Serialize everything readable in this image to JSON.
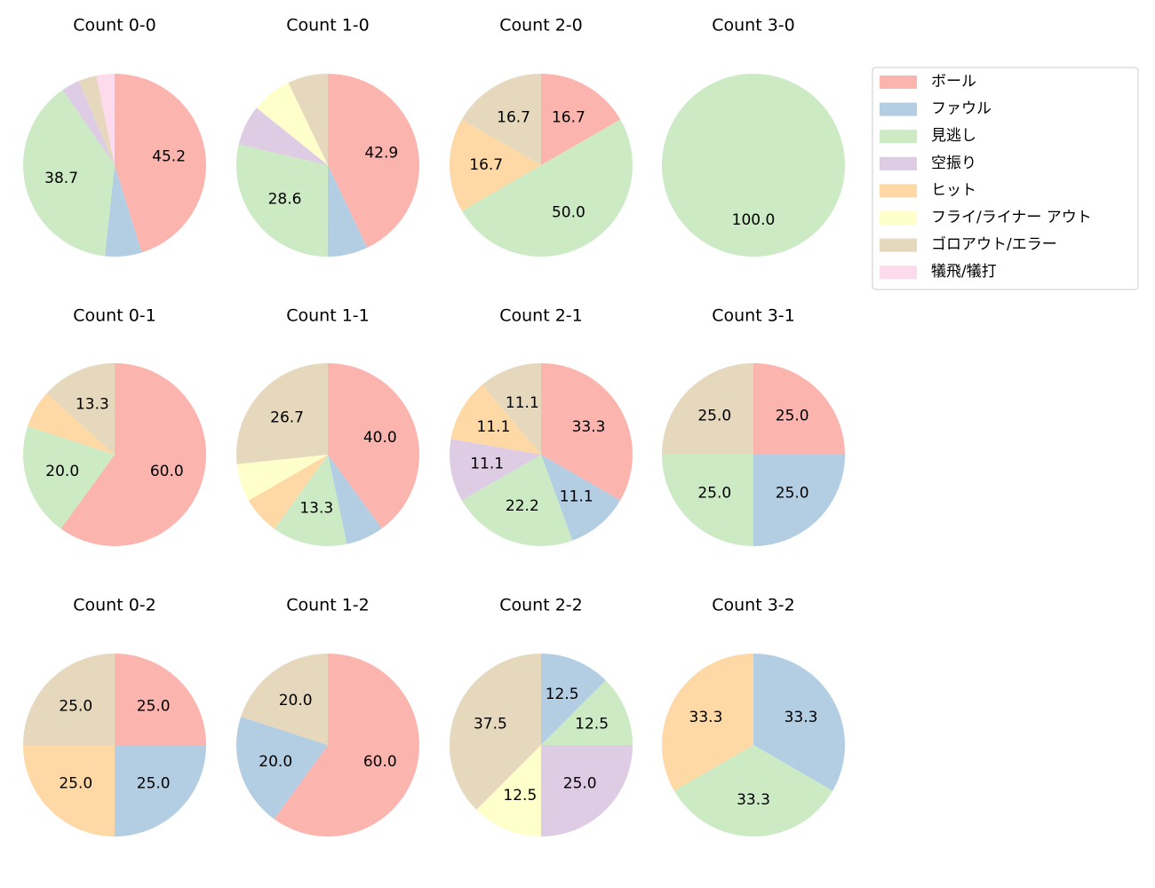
{
  "legend": {
    "labels": [
      "ボール",
      "ファウル",
      "見逃し",
      "空振り",
      "ヒット",
      "フライ/ライナー アウト",
      "ゴロアウト/エラー",
      "犠飛/犠打"
    ],
    "colors": [
      "#fbb4ae",
      "#b3cde3",
      "#ccebc5",
      "#decbe4",
      "#fed9a6",
      "#ffffcc",
      "#e5d8bd",
      "#fddaec"
    ]
  },
  "chart_data": [
    {
      "type": "pie",
      "title": "Count 0-0",
      "values": [
        45.2,
        6.5,
        38.7,
        3.2,
        null,
        null,
        3.2,
        3.2
      ],
      "value_labels": [
        "45.2",
        null,
        "38.7",
        null,
        null,
        null,
        null,
        null
      ]
    },
    {
      "type": "pie",
      "title": "Count 1-0",
      "values": [
        42.9,
        7.1,
        28.6,
        7.1,
        null,
        7.1,
        7.1,
        null
      ],
      "value_labels": [
        "42.9",
        null,
        "28.6",
        null,
        null,
        null,
        null,
        null
      ]
    },
    {
      "type": "pie",
      "title": "Count 2-0",
      "values": [
        16.7,
        null,
        50.0,
        null,
        16.7,
        null,
        16.7,
        null
      ],
      "value_labels": [
        "16.7",
        null,
        "50.0",
        null,
        "16.7",
        null,
        "16.7",
        null
      ]
    },
    {
      "type": "pie",
      "title": "Count 3-0",
      "values": [
        null,
        null,
        100.0,
        null,
        null,
        null,
        null,
        null
      ],
      "value_labels": [
        null,
        null,
        "100.0",
        null,
        null,
        null,
        null,
        null
      ]
    },
    {
      "type": "pie",
      "title": "Count 0-1",
      "values": [
        60.0,
        null,
        20.0,
        null,
        6.7,
        null,
        13.3,
        null
      ],
      "value_labels": [
        "60.0",
        null,
        "20.0",
        null,
        null,
        null,
        "13.3",
        null
      ]
    },
    {
      "type": "pie",
      "title": "Count 1-1",
      "values": [
        40.0,
        6.7,
        13.3,
        null,
        6.7,
        6.7,
        26.7,
        null
      ],
      "value_labels": [
        "40.0",
        null,
        "13.3",
        null,
        null,
        null,
        "26.7",
        null
      ]
    },
    {
      "type": "pie",
      "title": "Count 2-1",
      "values": [
        33.3,
        11.1,
        22.2,
        11.1,
        11.1,
        null,
        11.1,
        null
      ],
      "value_labels": [
        "33.3",
        "11.1",
        "22.2",
        "11.1",
        "11.1",
        null,
        "11.1",
        null
      ]
    },
    {
      "type": "pie",
      "title": "Count 3-1",
      "values": [
        25.0,
        25.0,
        25.0,
        null,
        null,
        null,
        25.0,
        null
      ],
      "value_labels": [
        "25.0",
        "25.0",
        "25.0",
        null,
        null,
        null,
        "25.0",
        null
      ]
    },
    {
      "type": "pie",
      "title": "Count 0-2",
      "values": [
        25.0,
        25.0,
        null,
        null,
        25.0,
        null,
        25.0,
        null
      ],
      "value_labels": [
        "25.0",
        "25.0",
        null,
        null,
        "25.0",
        null,
        "25.0",
        null
      ]
    },
    {
      "type": "pie",
      "title": "Count 1-2",
      "values": [
        60.0,
        20.0,
        null,
        null,
        null,
        null,
        20.0,
        null
      ],
      "value_labels": [
        "60.0",
        "20.0",
        null,
        null,
        null,
        null,
        "20.0",
        null
      ]
    },
    {
      "type": "pie",
      "title": "Count 2-2",
      "values": [
        null,
        12.5,
        12.5,
        25.0,
        null,
        12.5,
        37.5,
        null
      ],
      "value_labels": [
        null,
        "12.5",
        "12.5",
        "25.0",
        null,
        "12.5",
        "37.5",
        null
      ]
    },
    {
      "type": "pie",
      "title": "Count 3-2",
      "values": [
        null,
        33.3,
        33.3,
        null,
        33.3,
        null,
        null,
        null
      ],
      "value_labels": [
        null,
        "33.3",
        "33.3",
        null,
        "33.3",
        null,
        null,
        null
      ]
    }
  ]
}
